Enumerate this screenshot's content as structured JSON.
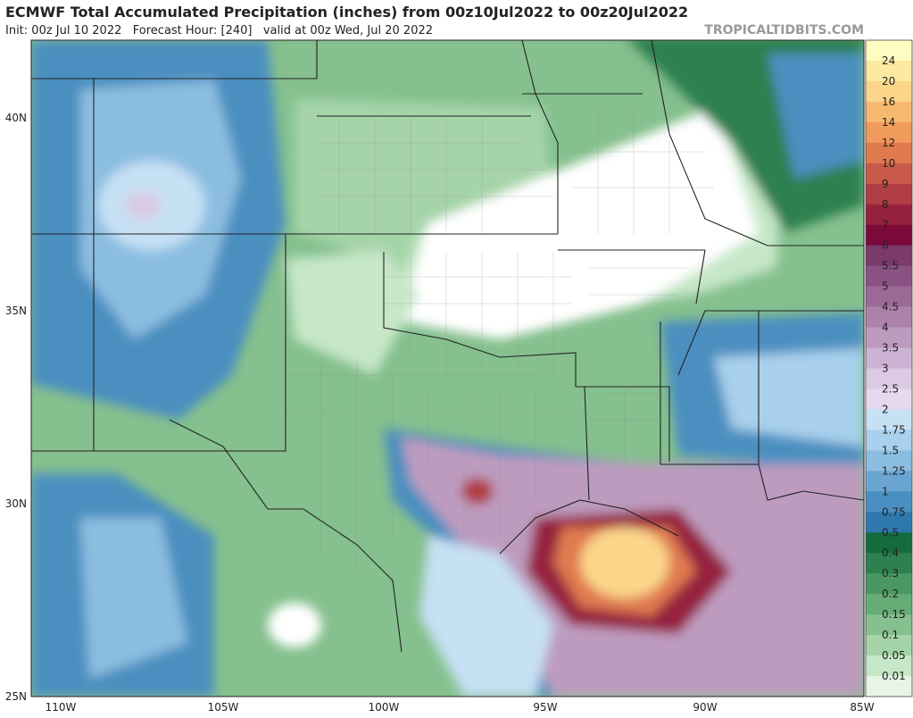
{
  "header": {
    "title": "ECMWF Total Accumulated Precipitation (inches) from 00z10Jul2022 to 00z20Jul2022",
    "subtitle": "Init: 00z Jul 10 2022   Forecast Hour: [240]   valid at 00z Wed, Jul 20 2022",
    "site": "TROPICALTIDBITS.COM"
  },
  "axes": {
    "lat_labels": [
      "40N",
      "35N",
      "30N",
      "25N"
    ],
    "lon_labels": [
      "110W",
      "105W",
      "100W",
      "95W",
      "90W",
      "85W"
    ]
  },
  "legend": {
    "labels": [
      "24",
      "20",
      "16",
      "14",
      "12",
      "10",
      "9",
      "8",
      "7",
      "6",
      "5.5",
      "5",
      "4.5",
      "4",
      "3.5",
      "3",
      "2.5",
      "2",
      "1.75",
      "1.5",
      "1.25",
      "1",
      "0.75",
      "0.5",
      "0.4",
      "0.3",
      "0.2",
      "0.15",
      "0.1",
      "0.05",
      "0.01"
    ],
    "colors": [
      "#fefcc0",
      "#fde9a0",
      "#fbd58a",
      "#f7b96f",
      "#f09a5b",
      "#e07a4f",
      "#c95a49",
      "#b03e44",
      "#96223f",
      "#7b0a3a",
      "#7a3a6a",
      "#8a5283",
      "#9b6a97",
      "#ac82ab",
      "#bd9bbf",
      "#cdb3d3",
      "#dcc9e3",
      "#e6d9ee",
      "#c6e0f4",
      "#a9d0ec",
      "#8bbde0",
      "#6aa5d1",
      "#4b8fc0",
      "#2e78ad",
      "#166b3e",
      "#2e8050",
      "#4a9763",
      "#66ac77",
      "#85c08e",
      "#a5d4a9",
      "#c6e7c8",
      "#e6f5e4"
    ]
  }
}
